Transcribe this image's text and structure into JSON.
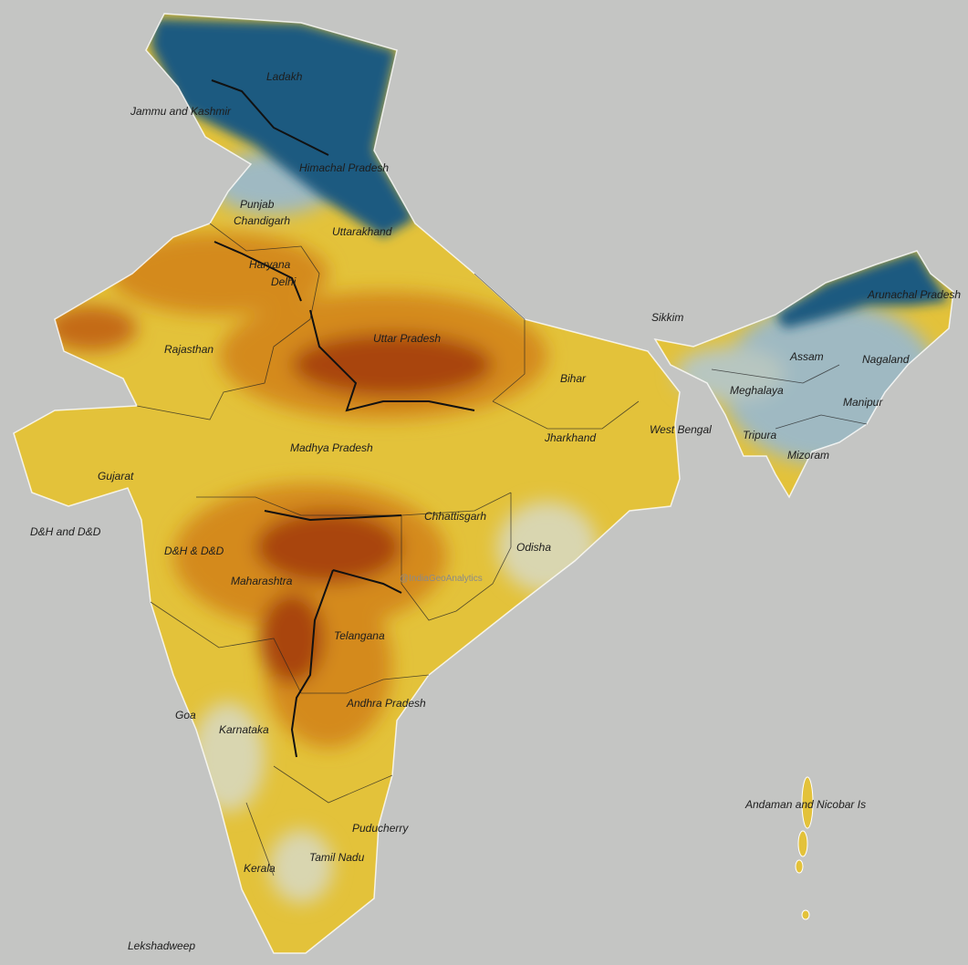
{
  "map": {
    "labels": {
      "ladakh": "Ladakh",
      "jammu_kashmir": "Jammu and Kashmir",
      "himachal": "Himachal Pradesh",
      "punjab": "Punjab",
      "chandigarh": "Chandigarh",
      "uttarakhand": "Uttarakhand",
      "haryana": "Haryana",
      "delhi": "Delhi",
      "rajasthan": "Rajasthan",
      "uttar_pradesh": "Uttar Pradesh",
      "bihar": "Bihar",
      "sikkim": "Sikkim",
      "arunachal": "Arunachal Pradesh",
      "assam": "Assam",
      "nagaland": "Nagaland",
      "meghalaya": "Meghalaya",
      "manipur": "Manipur",
      "tripura": "Tripura",
      "mizoram": "Mizoram",
      "west_bengal": "West Bengal",
      "jharkhand": "Jharkhand",
      "madhya_pradesh": "Madhya Pradesh",
      "gujarat": "Gujarat",
      "dnh_dd_west": "D&H and D&D",
      "dnh_dd": "D&H & D&D",
      "chhattisgarh": "Chhattisgarh",
      "odisha": "Odisha",
      "maharashtra": "Maharashtra",
      "telangana": "Telangana",
      "andhra": "Andhra Pradesh",
      "goa": "Goa",
      "karnataka": "Karnataka",
      "andaman": "Andaman and Nicobar Is",
      "puducherry": "Puducherry",
      "tamil_nadu": "Tamil Nadu",
      "kerala": "Kerala",
      "lakshadweep": "Lekshadweep"
    },
    "watermark": "@IndiaGeoAnalytics",
    "colors": {
      "background": "#c4c5c3",
      "cold": "#1f5a80",
      "cool": "#9fb9c2",
      "pale": "#d9d6b0",
      "warm": "#e3c23a",
      "hot": "#d48a1a",
      "hottest": "#a9440e",
      "border": "#111111",
      "coast": "#ffffff"
    }
  }
}
